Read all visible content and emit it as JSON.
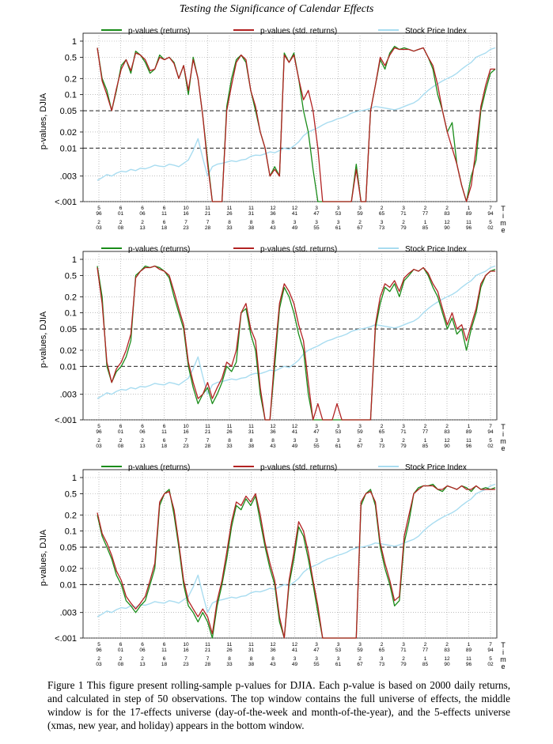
{
  "page": {
    "title": "Testing the Significance of Calendar Effects",
    "caption": "Figure 1 This figure present rolling-sample p-values for DJIA. Each p-value is based on 2000 daily returns, and calculated in step of 50 observations. The top window contains the full universe of effects, the middle window is for the 17-effects universe (day-of-the-week and month-of-the-year), and the 5-effects universe (xmas, new year, and holiday) appears in the bottom window."
  },
  "colors": {
    "returns": "#1a8c1a",
    "std_returns": "#b22222",
    "index": "#a8dcf0",
    "grid": "#999999"
  },
  "legend": {
    "returns": "p-values (returns)",
    "std_returns": "p-values (std. returns)",
    "index": "Stock Price Index"
  },
  "axis": {
    "ylabel": "p-values, DJIA",
    "time_label": [
      "T",
      "i",
      "m",
      "e"
    ],
    "y_ticks": [
      {
        "v": 1,
        "label": "1"
      },
      {
        "v": 0.5,
        "label": "0.5"
      },
      {
        "v": 0.2,
        "label": "0.2"
      },
      {
        "v": 0.1,
        "label": "0.1"
      },
      {
        "v": 0.05,
        "label": "0.05"
      },
      {
        "v": 0.02,
        "label": "0.02"
      },
      {
        "v": 0.01,
        "label": "0.01"
      },
      {
        "v": 0.003,
        "label": ".003"
      },
      {
        "v": 0.001,
        "label": "<.001"
      }
    ],
    "x_ticks_upper": [
      [
        "5",
        "96"
      ],
      [
        "6",
        "01"
      ],
      [
        "6",
        "06"
      ],
      [
        "6",
        "11"
      ],
      [
        "10",
        "16"
      ],
      [
        "11",
        "21"
      ],
      [
        "11",
        "26"
      ],
      [
        "11",
        "31"
      ],
      [
        "12",
        "36"
      ],
      [
        "12",
        "41"
      ],
      [
        "3",
        "47"
      ],
      [
        "3",
        "53"
      ],
      [
        "3",
        "59"
      ],
      [
        "2",
        "65"
      ],
      [
        "3",
        "71"
      ],
      [
        "2",
        "77"
      ],
      [
        "2",
        "83"
      ],
      [
        "1",
        "89"
      ],
      [
        "7",
        "94"
      ]
    ],
    "x_ticks_lower": [
      [
        "2",
        "03"
      ],
      [
        "2",
        "08"
      ],
      [
        "2",
        "13"
      ],
      [
        "6",
        "18"
      ],
      [
        "7",
        "23"
      ],
      [
        "7",
        "28"
      ],
      [
        "8",
        "33"
      ],
      [
        "8",
        "38"
      ],
      [
        "8",
        "43"
      ],
      [
        "3",
        "49"
      ],
      [
        "3",
        "55"
      ],
      [
        "3",
        "61"
      ],
      [
        "2",
        "67"
      ],
      [
        "3",
        "73"
      ],
      [
        "2",
        "79"
      ],
      [
        "1",
        "85"
      ],
      [
        "12",
        "90"
      ],
      [
        "11",
        "96"
      ],
      [
        "5",
        "02"
      ]
    ]
  },
  "chart_data": [
    {
      "type": "line",
      "panel": "top",
      "y_scale": "log",
      "ylim": [
        0.001,
        1
      ],
      "reference_lines": [
        0.05,
        0.01
      ],
      "series": [
        {
          "name": "p-values (returns)",
          "values": [
            0.75,
            0.2,
            0.12,
            0.05,
            0.12,
            0.35,
            0.45,
            0.25,
            0.65,
            0.55,
            0.4,
            0.25,
            0.3,
            0.55,
            0.45,
            0.5,
            0.4,
            0.2,
            0.35,
            0.1,
            0.5,
            0.2,
            0.04,
            0.006,
            0.001,
            0.001,
            0.001,
            0.06,
            0.2,
            0.45,
            0.55,
            0.4,
            0.12,
            0.05,
            0.02,
            0.01,
            0.003,
            0.0045,
            0.003,
            0.6,
            0.4,
            0.6,
            0.2,
            0.05,
            0.02,
            0.004,
            0.001,
            0.001,
            0.001,
            0.001,
            0.001,
            0.001,
            0.001,
            0.001,
            0.005,
            0.001,
            0.001,
            0.05,
            0.15,
            0.45,
            0.3,
            0.6,
            0.8,
            0.7,
            0.75,
            0.7,
            0.65,
            0.7,
            0.75,
            0.5,
            0.3,
            0.1,
            0.05,
            0.02,
            0.03,
            0.005,
            0.002,
            0.001,
            0.003,
            0.006,
            0.05,
            0.12,
            0.25,
            0.3
          ]
        },
        {
          "name": "p-values (std. returns)",
          "values": [
            0.75,
            0.18,
            0.1,
            0.05,
            0.13,
            0.3,
            0.45,
            0.28,
            0.6,
            0.55,
            0.45,
            0.28,
            0.3,
            0.5,
            0.45,
            0.5,
            0.38,
            0.2,
            0.35,
            0.12,
            0.45,
            0.2,
            0.04,
            0.005,
            0.001,
            0.001,
            0.001,
            0.05,
            0.15,
            0.4,
            0.55,
            0.45,
            0.12,
            0.06,
            0.02,
            0.01,
            0.003,
            0.004,
            0.003,
            0.55,
            0.4,
            0.55,
            0.2,
            0.08,
            0.12,
            0.05,
            0.01,
            0.001,
            0.001,
            0.001,
            0.001,
            0.001,
            0.001,
            0.001,
            0.004,
            0.001,
            0.001,
            0.05,
            0.15,
            0.5,
            0.35,
            0.55,
            0.75,
            0.7,
            0.7,
            0.7,
            0.65,
            0.7,
            0.75,
            0.5,
            0.35,
            0.15,
            0.05,
            0.02,
            0.01,
            0.005,
            0.002,
            0.001,
            0.002,
            0.01,
            0.06,
            0.15,
            0.3,
            0.3
          ]
        },
        {
          "name": "Stock Price Index",
          "values": [
            0.0025,
            0.0028,
            0.0032,
            0.003,
            0.0034,
            0.0037,
            0.0036,
            0.004,
            0.0038,
            0.0042,
            0.0041,
            0.0044,
            0.0048,
            0.0046,
            0.0045,
            0.005,
            0.0048,
            0.0045,
            0.0052,
            0.006,
            0.009,
            0.015,
            0.0065,
            0.003,
            0.0045,
            0.005,
            0.0052,
            0.0055,
            0.0058,
            0.0056,
            0.006,
            0.0062,
            0.007,
            0.0074,
            0.0073,
            0.0078,
            0.0085,
            0.0082,
            0.009,
            0.01,
            0.0095,
            0.011,
            0.013,
            0.017,
            0.02,
            0.022,
            0.024,
            0.027,
            0.03,
            0.032,
            0.035,
            0.037,
            0.04,
            0.045,
            0.048,
            0.05,
            0.052,
            0.055,
            0.06,
            0.058,
            0.056,
            0.054,
            0.052,
            0.055,
            0.06,
            0.065,
            0.07,
            0.08,
            0.1,
            0.12,
            0.14,
            0.16,
            0.18,
            0.2,
            0.22,
            0.25,
            0.3,
            0.35,
            0.4,
            0.5,
            0.55,
            0.6,
            0.7,
            0.75
          ]
        }
      ]
    },
    {
      "type": "line",
      "panel": "middle",
      "y_scale": "log",
      "ylim": [
        0.001,
        1
      ],
      "reference_lines": [
        0.05,
        0.01
      ],
      "series": [
        {
          "name": "p-values (returns)",
          "values": [
            0.75,
            0.2,
            0.01,
            0.005,
            0.008,
            0.01,
            0.015,
            0.03,
            0.5,
            0.6,
            0.75,
            0.7,
            0.75,
            0.7,
            0.6,
            0.45,
            0.2,
            0.1,
            0.05,
            0.01,
            0.004,
            0.002,
            0.003,
            0.004,
            0.002,
            0.003,
            0.005,
            0.01,
            0.008,
            0.012,
            0.1,
            0.12,
            0.04,
            0.02,
            0.003,
            0.001,
            0.001,
            0.01,
            0.12,
            0.3,
            0.2,
            0.1,
            0.04,
            0.02,
            0.003,
            0.001,
            0.001,
            0.001,
            0.001,
            0.001,
            0.001,
            0.001,
            0.001,
            0.001,
            0.001,
            0.001,
            0.001,
            0.001,
            0.05,
            0.15,
            0.3,
            0.25,
            0.35,
            0.2,
            0.4,
            0.5,
            0.65,
            0.6,
            0.7,
            0.5,
            0.3,
            0.2,
            0.1,
            0.05,
            0.08,
            0.04,
            0.05,
            0.02,
            0.05,
            0.1,
            0.3,
            0.5,
            0.6,
            0.65
          ]
        },
        {
          "name": "p-values (std. returns)",
          "values": [
            0.7,
            0.15,
            0.012,
            0.005,
            0.009,
            0.012,
            0.02,
            0.04,
            0.45,
            0.6,
            0.7,
            0.7,
            0.75,
            0.65,
            0.6,
            0.5,
            0.25,
            0.12,
            0.06,
            0.012,
            0.005,
            0.0025,
            0.003,
            0.005,
            0.0025,
            0.004,
            0.006,
            0.012,
            0.01,
            0.02,
            0.1,
            0.15,
            0.05,
            0.03,
            0.004,
            0.001,
            0.001,
            0.015,
            0.15,
            0.35,
            0.25,
            0.15,
            0.06,
            0.03,
            0.005,
            0.001,
            0.002,
            0.001,
            0.001,
            0.001,
            0.002,
            0.001,
            0.001,
            0.001,
            0.001,
            0.001,
            0.001,
            0.001,
            0.06,
            0.2,
            0.35,
            0.3,
            0.4,
            0.25,
            0.45,
            0.55,
            0.65,
            0.6,
            0.7,
            0.55,
            0.35,
            0.25,
            0.12,
            0.06,
            0.1,
            0.05,
            0.06,
            0.03,
            0.06,
            0.12,
            0.35,
            0.5,
            0.6,
            0.6
          ]
        },
        {
          "name": "Stock Price Index",
          "values": [
            0.0025,
            0.0028,
            0.0032,
            0.003,
            0.0034,
            0.0037,
            0.0036,
            0.004,
            0.0038,
            0.0042,
            0.0041,
            0.0044,
            0.0048,
            0.0046,
            0.0045,
            0.005,
            0.0048,
            0.0045,
            0.0052,
            0.006,
            0.009,
            0.015,
            0.0065,
            0.003,
            0.0045,
            0.005,
            0.0052,
            0.0055,
            0.0058,
            0.0056,
            0.006,
            0.0062,
            0.007,
            0.0074,
            0.0073,
            0.0078,
            0.0085,
            0.0082,
            0.009,
            0.01,
            0.0095,
            0.011,
            0.013,
            0.017,
            0.02,
            0.022,
            0.024,
            0.027,
            0.03,
            0.032,
            0.035,
            0.037,
            0.04,
            0.045,
            0.048,
            0.05,
            0.052,
            0.055,
            0.06,
            0.058,
            0.056,
            0.054,
            0.052,
            0.055,
            0.06,
            0.065,
            0.07,
            0.08,
            0.1,
            0.12,
            0.14,
            0.16,
            0.18,
            0.2,
            0.22,
            0.25,
            0.3,
            0.35,
            0.4,
            0.5,
            0.55,
            0.6,
            0.7,
            0.75
          ]
        }
      ]
    },
    {
      "type": "line",
      "panel": "bottom",
      "y_scale": "log",
      "ylim": [
        0.001,
        1
      ],
      "reference_lines": [
        0.05,
        0.01
      ],
      "series": [
        {
          "name": "p-values (returns)",
          "values": [
            0.2,
            0.08,
            0.05,
            0.03,
            0.015,
            0.01,
            0.005,
            0.004,
            0.003,
            0.004,
            0.005,
            0.01,
            0.02,
            0.3,
            0.5,
            0.6,
            0.2,
            0.05,
            0.01,
            0.004,
            0.003,
            0.002,
            0.003,
            0.002,
            0.001,
            0.004,
            0.01,
            0.03,
            0.12,
            0.3,
            0.25,
            0.4,
            0.3,
            0.45,
            0.15,
            0.05,
            0.02,
            0.01,
            0.002,
            0.001,
            0.01,
            0.03,
            0.12,
            0.08,
            0.03,
            0.01,
            0.003,
            0.001,
            0.001,
            0.001,
            0.001,
            0.001,
            0.001,
            0.001,
            0.001,
            0.3,
            0.5,
            0.6,
            0.3,
            0.05,
            0.02,
            0.01,
            0.004,
            0.005,
            0.06,
            0.15,
            0.5,
            0.65,
            0.7,
            0.7,
            0.75,
            0.6,
            0.55,
            0.7,
            0.65,
            0.6,
            0.7,
            0.65,
            0.55,
            0.7,
            0.6,
            0.65,
            0.6,
            0.65
          ]
        },
        {
          "name": "p-values (std. returns)",
          "values": [
            0.22,
            0.09,
            0.06,
            0.035,
            0.018,
            0.012,
            0.006,
            0.0045,
            0.0035,
            0.0045,
            0.006,
            0.012,
            0.025,
            0.35,
            0.5,
            0.55,
            0.25,
            0.06,
            0.012,
            0.005,
            0.0035,
            0.0025,
            0.0035,
            0.0025,
            0.0012,
            0.005,
            0.012,
            0.04,
            0.15,
            0.35,
            0.3,
            0.45,
            0.35,
            0.5,
            0.2,
            0.06,
            0.025,
            0.012,
            0.0025,
            0.001,
            0.012,
            0.04,
            0.15,
            0.1,
            0.04,
            0.012,
            0.004,
            0.001,
            0.001,
            0.001,
            0.001,
            0.001,
            0.001,
            0.001,
            0.001,
            0.35,
            0.5,
            0.55,
            0.35,
            0.06,
            0.025,
            0.012,
            0.005,
            0.006,
            0.08,
            0.2,
            0.5,
            0.6,
            0.7,
            0.7,
            0.7,
            0.6,
            0.6,
            0.7,
            0.65,
            0.6,
            0.7,
            0.6,
            0.6,
            0.7,
            0.6,
            0.6,
            0.6,
            0.6
          ]
        },
        {
          "name": "Stock Price Index",
          "values": [
            0.0025,
            0.0028,
            0.0032,
            0.003,
            0.0034,
            0.0037,
            0.0036,
            0.004,
            0.0038,
            0.0042,
            0.0041,
            0.0044,
            0.0048,
            0.0046,
            0.0045,
            0.005,
            0.0048,
            0.0045,
            0.0052,
            0.006,
            0.009,
            0.015,
            0.0065,
            0.003,
            0.0045,
            0.005,
            0.0052,
            0.0055,
            0.0058,
            0.0056,
            0.006,
            0.0062,
            0.007,
            0.0074,
            0.0073,
            0.0078,
            0.0085,
            0.0082,
            0.009,
            0.01,
            0.0095,
            0.011,
            0.013,
            0.017,
            0.02,
            0.022,
            0.024,
            0.027,
            0.03,
            0.032,
            0.035,
            0.037,
            0.04,
            0.045,
            0.048,
            0.05,
            0.052,
            0.055,
            0.06,
            0.058,
            0.056,
            0.054,
            0.052,
            0.055,
            0.06,
            0.065,
            0.07,
            0.08,
            0.1,
            0.12,
            0.14,
            0.16,
            0.18,
            0.2,
            0.22,
            0.25,
            0.3,
            0.35,
            0.4,
            0.5,
            0.55,
            0.6,
            0.7,
            0.75
          ]
        }
      ]
    }
  ]
}
